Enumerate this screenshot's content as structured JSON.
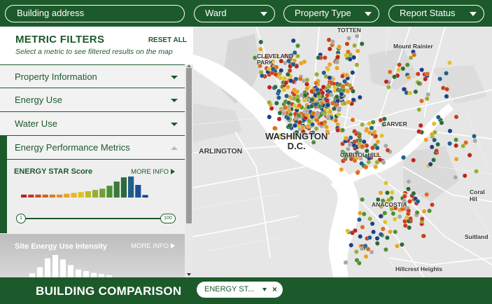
{
  "topbar": {
    "address_placeholder": "Building address",
    "ward_label": "Ward",
    "property_type_label": "Property Type",
    "report_status_label": "Report Status"
  },
  "sidebar": {
    "title": "METRIC FILTERS",
    "reset_label": "RESET ALL",
    "subtitle": "Select a metric to see filtered results on the map",
    "sections": [
      {
        "label": "Property Information",
        "expanded": false
      },
      {
        "label": "Energy Use",
        "expanded": false
      },
      {
        "label": "Water Use",
        "expanded": false
      },
      {
        "label": "Energy Performance Metrics",
        "expanded": true
      }
    ],
    "energy_star": {
      "title": "ENERGY STAR Score",
      "more_info": "MORE INFO",
      "min": "1",
      "max": "100",
      "histogram": [
        {
          "value": 0.14,
          "color": "#b8261f"
        },
        {
          "value": 0.14,
          "color": "#c0361c"
        },
        {
          "value": 0.14,
          "color": "#cc4a1c"
        },
        {
          "value": 0.14,
          "color": "#d4611c"
        },
        {
          "value": 0.14,
          "color": "#db7a1d"
        },
        {
          "value": 0.14,
          "color": "#e38f1f"
        },
        {
          "value": 0.18,
          "color": "#e8a322"
        },
        {
          "value": 0.22,
          "color": "#e9b626"
        },
        {
          "value": 0.26,
          "color": "#ddc22a"
        },
        {
          "value": 0.3,
          "color": "#bcbc2d"
        },
        {
          "value": 0.36,
          "color": "#98ae30"
        },
        {
          "value": 0.42,
          "color": "#72a034"
        },
        {
          "value": 0.56,
          "color": "#4f8f36"
        },
        {
          "value": 0.76,
          "color": "#3a7a38"
        },
        {
          "value": 0.96,
          "color": "#2c6a3a"
        },
        {
          "value": 1.0,
          "color": "#1f5f8a"
        },
        {
          "value": 0.6,
          "color": "#1b4f9a"
        },
        {
          "value": 0.12,
          "color": "#1a3f8a"
        }
      ]
    },
    "site_eui": {
      "title": "Site Energy Use Intensity",
      "more_info": "MORE INFO",
      "histogram": [
        0.18,
        0.45,
        0.85,
        1.0,
        0.8,
        0.55,
        0.35,
        0.28,
        0.2,
        0.15,
        0.1
      ]
    }
  },
  "map": {
    "labels": {
      "totten": "TOTTEN",
      "mount_rainier": "Mount Rainier",
      "cleveland_park": "CLEVELAND\nPARK",
      "carver": "CARVER",
      "washington": "WASHINGTON\nD.C.",
      "arlington": "ARLINGTON",
      "capitol_hill": "CAPITOL HILL",
      "coral_hills": "Coral Hil",
      "anacostia": "ANACOSTIA",
      "suitland": "Suitland",
      "hillcrest": "Hillcrest Heights"
    },
    "colors": {
      "land": "#e6e6e6",
      "park": "#d4d4d4",
      "water": "#ffffff",
      "road": "#ffffff"
    },
    "marker_palette": [
      "#b8261f",
      "#c8401c",
      "#dd6b1d",
      "#e8a322",
      "#ddc22a",
      "#98ae30",
      "#4f8f36",
      "#2c6a3a",
      "#1f5f8a",
      "#1b3f8a",
      "#a8a8a8"
    ]
  },
  "bottom": {
    "title": "BUILDING COMPARISON",
    "chip_label": "ENERGY ST...",
    "chip_close": "×"
  },
  "accent_color": "#1d5a2b"
}
